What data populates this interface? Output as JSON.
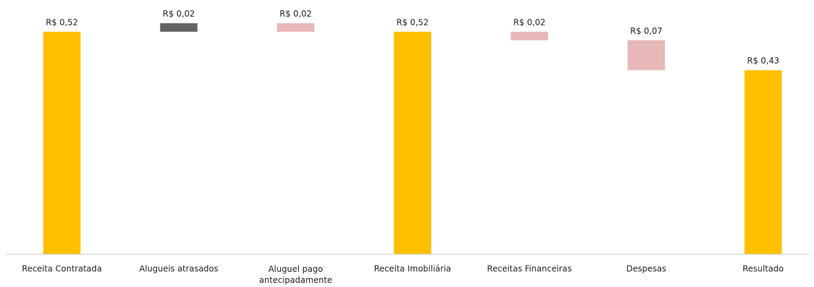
{
  "chart_data": {
    "type": "waterfall",
    "categories": [
      "Receita Contratada",
      "Alugueis atrasados",
      "Aluguel pago antecipadamente",
      "Receita Imobiliária",
      "Receitas Financeiras",
      "Despesas",
      "Resultado"
    ],
    "values": [
      0.52,
      0.02,
      -0.02,
      0.52,
      -0.02,
      -0.07,
      0.43
    ],
    "value_labels": [
      "R$ 0,52",
      "R$ 0,02",
      "R$ 0,02",
      "R$ 0,52",
      "R$ 0,02",
      "R$ 0,07",
      "R$ 0,43"
    ],
    "measure": [
      "absolute",
      "relative",
      "relative",
      "absolute",
      "relative",
      "relative",
      "absolute"
    ],
    "colors": [
      "#ffc000",
      "#636363",
      "#e6b8b7",
      "#ffc000",
      "#e6b8b7",
      "#e6b8b7",
      "#ffc000"
    ],
    "ylim": [
      0,
      0.56
    ]
  }
}
